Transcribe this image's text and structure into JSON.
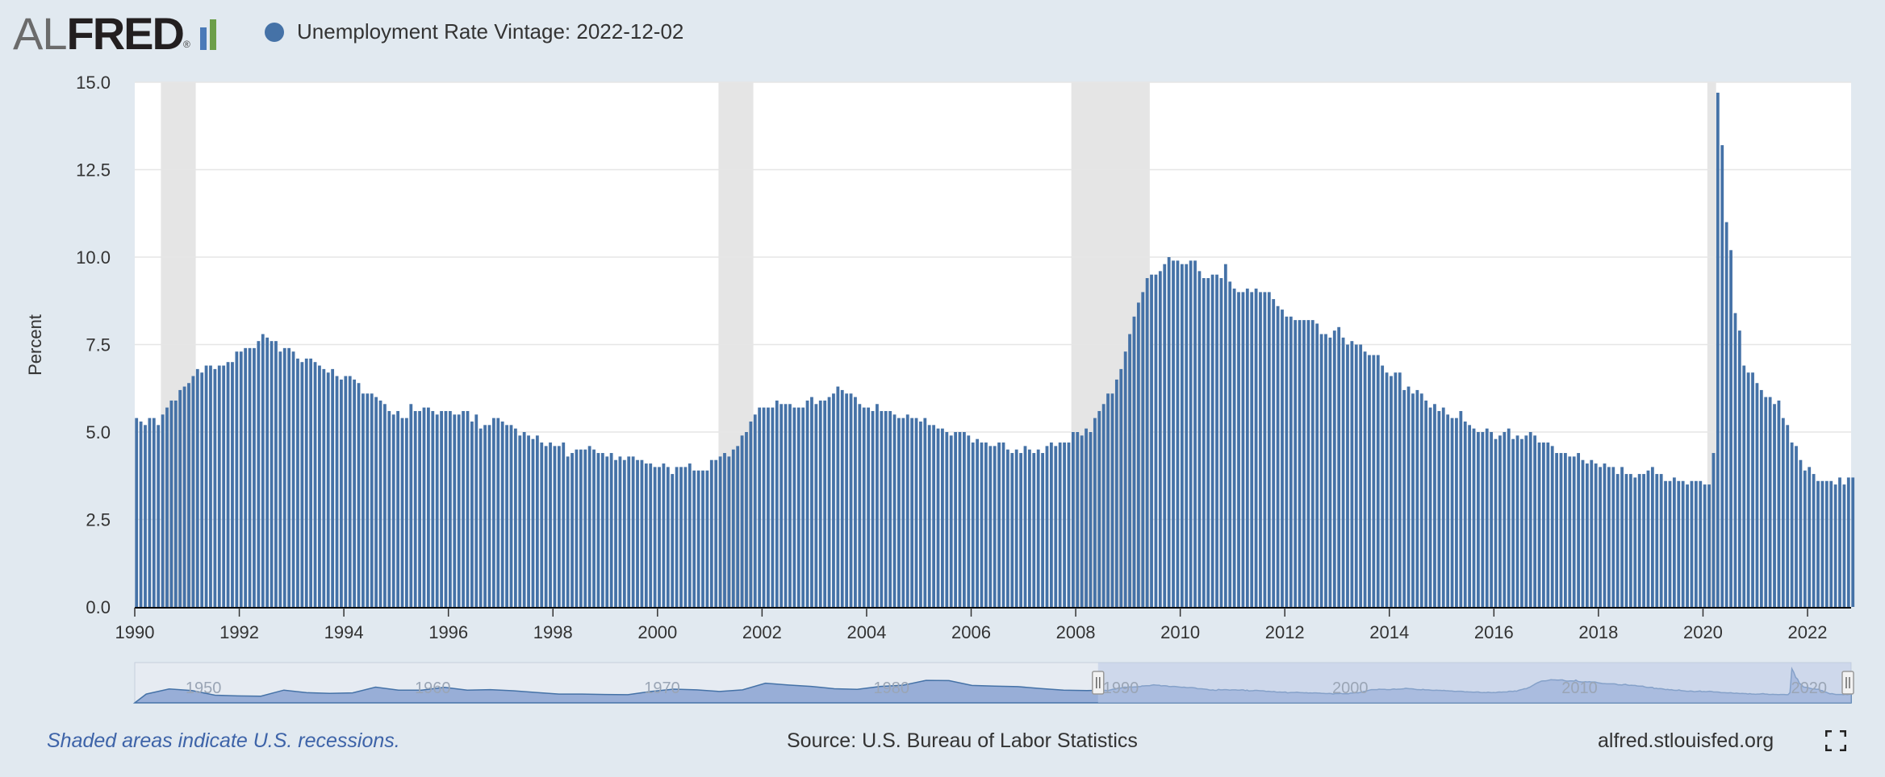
{
  "logo": {
    "part1": "AL",
    "part2": "FRED",
    "reg": "®",
    "bar_colors": [
      "#4a7ab8",
      "#6c9e49",
      "#8aa8c8"
    ]
  },
  "legend": {
    "label": "Unemployment Rate Vintage: 2022-12-02"
  },
  "footer": {
    "recession_note": "Shaded areas indicate U.S. recessions.",
    "source": "Source: U.S. Bureau of Labor Statistics",
    "site": "alfred.stlouisfed.org"
  },
  "icons": {
    "fullscreen": "fullscreen-icon"
  },
  "colors": {
    "bar": "#4572a7",
    "recession": "#e5e5e5",
    "navigator_fill": "#7d9acd",
    "navigator_window": "#b9c8e6"
  },
  "chart_data": {
    "type": "bar",
    "title": "",
    "series": [
      {
        "name": "Unemployment Rate Vintage: 2022-12-02"
      }
    ],
    "ylabel": "Percent",
    "xlabel": "",
    "ylim": [
      0,
      15
    ],
    "yticks": [
      "0.0",
      "2.5",
      "5.0",
      "7.5",
      "10.0",
      "12.5",
      "15.0"
    ],
    "xlim": [
      "1990-01",
      "2022-11"
    ],
    "xticks": [
      "1990",
      "1992",
      "1994",
      "1996",
      "1998",
      "2000",
      "2002",
      "2004",
      "2006",
      "2008",
      "2010",
      "2012",
      "2014",
      "2016",
      "2018",
      "2020",
      "2022"
    ],
    "frequency": "monthly",
    "start": "1990-01",
    "values": [
      5.4,
      5.3,
      5.2,
      5.4,
      5.4,
      5.2,
      5.5,
      5.7,
      5.9,
      5.9,
      6.2,
      6.3,
      6.4,
      6.6,
      6.8,
      6.7,
      6.9,
      6.9,
      6.8,
      6.9,
      6.9,
      7.0,
      7.0,
      7.3,
      7.3,
      7.4,
      7.4,
      7.4,
      7.6,
      7.8,
      7.7,
      7.6,
      7.6,
      7.3,
      7.4,
      7.4,
      7.3,
      7.1,
      7.0,
      7.1,
      7.1,
      7.0,
      6.9,
      6.8,
      6.7,
      6.8,
      6.6,
      6.5,
      6.6,
      6.6,
      6.5,
      6.4,
      6.1,
      6.1,
      6.1,
      6.0,
      5.9,
      5.8,
      5.6,
      5.5,
      5.6,
      5.4,
      5.4,
      5.8,
      5.6,
      5.6,
      5.7,
      5.7,
      5.6,
      5.5,
      5.6,
      5.6,
      5.6,
      5.5,
      5.5,
      5.6,
      5.6,
      5.3,
      5.5,
      5.1,
      5.2,
      5.2,
      5.4,
      5.4,
      5.3,
      5.2,
      5.2,
      5.1,
      4.9,
      5.0,
      4.9,
      4.8,
      4.9,
      4.7,
      4.6,
      4.7,
      4.6,
      4.6,
      4.7,
      4.3,
      4.4,
      4.5,
      4.5,
      4.5,
      4.6,
      4.5,
      4.4,
      4.4,
      4.3,
      4.4,
      4.2,
      4.3,
      4.2,
      4.3,
      4.3,
      4.2,
      4.2,
      4.1,
      4.1,
      4.0,
      4.0,
      4.1,
      4.0,
      3.8,
      4.0,
      4.0,
      4.0,
      4.1,
      3.9,
      3.9,
      3.9,
      3.9,
      4.2,
      4.2,
      4.3,
      4.4,
      4.3,
      4.5,
      4.6,
      4.9,
      5.0,
      5.3,
      5.5,
      5.7,
      5.7,
      5.7,
      5.7,
      5.9,
      5.8,
      5.8,
      5.8,
      5.7,
      5.7,
      5.7,
      5.9,
      6.0,
      5.8,
      5.9,
      5.9,
      6.0,
      6.1,
      6.3,
      6.2,
      6.1,
      6.1,
      6.0,
      5.8,
      5.7,
      5.7,
      5.6,
      5.8,
      5.6,
      5.6,
      5.6,
      5.5,
      5.4,
      5.4,
      5.5,
      5.4,
      5.4,
      5.3,
      5.4,
      5.2,
      5.2,
      5.1,
      5.1,
      5.0,
      4.9,
      5.0,
      5.0,
      5.0,
      4.9,
      4.7,
      4.8,
      4.7,
      4.7,
      4.6,
      4.6,
      4.7,
      4.7,
      4.5,
      4.4,
      4.5,
      4.4,
      4.6,
      4.5,
      4.4,
      4.5,
      4.4,
      4.6,
      4.7,
      4.6,
      4.7,
      4.7,
      4.7,
      5.0,
      5.0,
      4.9,
      5.1,
      5.0,
      5.4,
      5.6,
      5.8,
      6.1,
      6.1,
      6.5,
      6.8,
      7.3,
      7.8,
      8.3,
      8.7,
      9.0,
      9.4,
      9.5,
      9.5,
      9.6,
      9.8,
      10.0,
      9.9,
      9.9,
      9.8,
      9.8,
      9.9,
      9.9,
      9.6,
      9.4,
      9.4,
      9.5,
      9.5,
      9.4,
      9.8,
      9.3,
      9.1,
      9.0,
      9.0,
      9.1,
      9.0,
      9.1,
      9.0,
      9.0,
      9.0,
      8.8,
      8.6,
      8.5,
      8.3,
      8.3,
      8.2,
      8.2,
      8.2,
      8.2,
      8.2,
      8.1,
      7.8,
      7.8,
      7.7,
      7.9,
      8.0,
      7.7,
      7.5,
      7.6,
      7.5,
      7.5,
      7.3,
      7.2,
      7.2,
      7.2,
      6.9,
      6.7,
      6.6,
      6.7,
      6.7,
      6.2,
      6.3,
      6.1,
      6.2,
      6.1,
      5.9,
      5.7,
      5.8,
      5.6,
      5.7,
      5.5,
      5.4,
      5.4,
      5.6,
      5.3,
      5.2,
      5.1,
      5.0,
      5.0,
      5.1,
      5.0,
      4.8,
      4.9,
      5.0,
      5.1,
      4.8,
      4.9,
      4.8,
      4.9,
      5.0,
      4.9,
      4.7,
      4.7,
      4.7,
      4.6,
      4.4,
      4.4,
      4.4,
      4.3,
      4.3,
      4.4,
      4.2,
      4.1,
      4.2,
      4.1,
      4.0,
      4.1,
      4.0,
      4.0,
      3.8,
      4.0,
      3.8,
      3.8,
      3.7,
      3.8,
      3.8,
      3.9,
      4.0,
      3.8,
      3.8,
      3.6,
      3.6,
      3.7,
      3.6,
      3.6,
      3.5,
      3.6,
      3.6,
      3.6,
      3.5,
      3.5,
      4.4,
      14.7,
      13.2,
      11.0,
      10.2,
      8.4,
      7.9,
      6.9,
      6.7,
      6.7,
      6.4,
      6.2,
      6.0,
      6.0,
      5.8,
      5.9,
      5.4,
      5.2,
      4.7,
      4.6,
      4.2,
      3.9,
      4.0,
      3.8,
      3.6,
      3.6,
      3.6,
      3.6,
      3.5,
      3.7,
      3.5,
      3.7,
      3.7
    ],
    "recessions": [
      [
        "1990-07",
        "1991-03"
      ],
      [
        "2001-03",
        "2001-11"
      ],
      [
        "2007-12",
        "2009-06"
      ],
      [
        "2020-02",
        "2020-04"
      ]
    ],
    "navigator": {
      "labels": [
        "1950",
        "1960",
        "1970",
        "1980",
        "1990",
        "2000",
        "2010",
        "2020"
      ],
      "range": [
        "1948-01",
        "2022-11"
      ]
    }
  }
}
